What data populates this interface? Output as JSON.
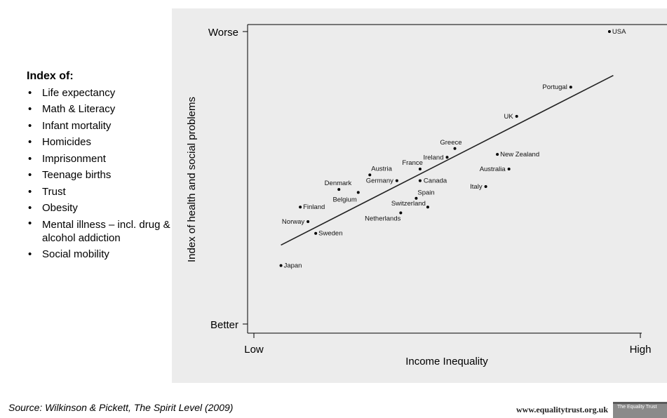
{
  "index_title": "Index of:",
  "index_items": [
    "Life expectancy",
    "Math & Literacy",
    "Infant mortality",
    "Homicides",
    "Imprisonment",
    "Teenage births",
    "Trust",
    "Obesity",
    "Mental illness – incl. drug & alcohol addiction",
    "Social mobility"
  ],
  "source": "Source: Wilkinson & Pickett, The Spirit Level (2009)",
  "website": "www.equalitytrust.org.uk",
  "logo_text": "The Equality Trust",
  "colors": {
    "panel": "#ececec",
    "ink": "#000000"
  },
  "chart_data": {
    "type": "scatter",
    "xlabel": "Income Inequality",
    "ylabel": "Index of health and social problems",
    "x_tick_labels": [
      "Low",
      "High"
    ],
    "y_tick_labels": [
      "Worse",
      "Better"
    ],
    "xlim": [
      0,
      100
    ],
    "ylim": [
      0,
      100
    ],
    "grid": false,
    "points": [
      {
        "label": "USA",
        "x": 92,
        "y": 100
      },
      {
        "label": "Portugal",
        "x": 82,
        "y": 81
      },
      {
        "label": "UK",
        "x": 68,
        "y": 71
      },
      {
        "label": "Greece",
        "x": 52,
        "y": 60
      },
      {
        "label": "New Zealand",
        "x": 63,
        "y": 58
      },
      {
        "label": "Ireland",
        "x": 50,
        "y": 57
      },
      {
        "label": "France",
        "x": 43,
        "y": 53
      },
      {
        "label": "Australia",
        "x": 66,
        "y": 53
      },
      {
        "label": "Austria",
        "x": 30,
        "y": 51
      },
      {
        "label": "Germany",
        "x": 37,
        "y": 49
      },
      {
        "label": "Canada",
        "x": 43,
        "y": 49
      },
      {
        "label": "Italy",
        "x": 60,
        "y": 47
      },
      {
        "label": "Denmark",
        "x": 22,
        "y": 46
      },
      {
        "label": "Belgium",
        "x": 27,
        "y": 45
      },
      {
        "label": "Spain",
        "x": 42,
        "y": 43
      },
      {
        "label": "Finland",
        "x": 12,
        "y": 40
      },
      {
        "label": "Switzerland",
        "x": 45,
        "y": 40
      },
      {
        "label": "Netherlands",
        "x": 38,
        "y": 38
      },
      {
        "label": "Norway",
        "x": 14,
        "y": 35
      },
      {
        "label": "Sweden",
        "x": 16,
        "y": 31
      },
      {
        "label": "Japan",
        "x": 7,
        "y": 20
      }
    ],
    "trend_line": {
      "x": [
        7,
        93
      ],
      "y": [
        27,
        85
      ]
    }
  }
}
